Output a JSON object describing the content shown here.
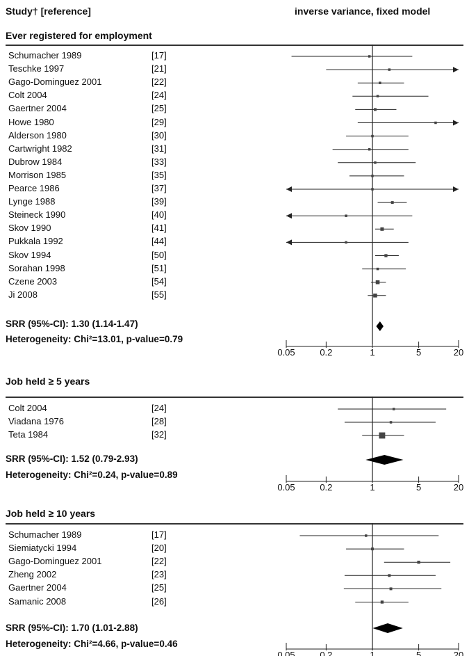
{
  "header": {
    "study_col": "Study† [reference]",
    "model_col": "inverse variance, fixed model"
  },
  "axis_ticks": [
    "0.05",
    "0.2",
    "1",
    "5",
    "20"
  ],
  "colors": {
    "line": "#222222",
    "box": "#444444",
    "diamond": "#000000"
  },
  "chart_data": {
    "type": "forest",
    "x_scale": "log",
    "xlim": [
      0.05,
      20
    ],
    "reference_line": 1,
    "sections": [
      {
        "title": "Ever registered for employment",
        "studies": [
          {
            "name": "Schumacher 1989",
            "ref": "[17]",
            "estimate": 0.9,
            "lo": 0.06,
            "hi": 4.0,
            "weight": 0.2
          },
          {
            "name": "Teschke 1997",
            "ref": "[21]",
            "estimate": 1.8,
            "lo": 0.2,
            "hi": 20,
            "weight": 0.2,
            "arrow_right": true
          },
          {
            "name": "Gago-Dominguez 2001",
            "ref": "[22]",
            "estimate": 1.3,
            "lo": 0.6,
            "hi": 3.0,
            "weight": 0.4
          },
          {
            "name": "Colt 2004",
            "ref": "[24]",
            "estimate": 1.2,
            "lo": 0.5,
            "hi": 7.0,
            "weight": 0.3
          },
          {
            "name": "Gaertner 2004",
            "ref": "[25]",
            "estimate": 1.1,
            "lo": 0.55,
            "hi": 2.3,
            "weight": 0.5
          },
          {
            "name": "Howe 1980",
            "ref": "[29]",
            "estimate": 9.0,
            "lo": 0.6,
            "hi": 20,
            "weight": 0.2,
            "arrow_right": true
          },
          {
            "name": "Alderson 1980",
            "ref": "[30]",
            "estimate": 1.0,
            "lo": 0.4,
            "hi": 3.5,
            "weight": 0.3
          },
          {
            "name": "Cartwright 1982",
            "ref": "[31]",
            "estimate": 0.9,
            "lo": 0.25,
            "hi": 3.5,
            "weight": 0.3
          },
          {
            "name": "Dubrow 1984",
            "ref": "[33]",
            "estimate": 1.1,
            "lo": 0.3,
            "hi": 4.5,
            "weight": 0.3
          },
          {
            "name": "Morrison 1985",
            "ref": "[35]",
            "estimate": 1.0,
            "lo": 0.45,
            "hi": 3.0,
            "weight": 0.3
          },
          {
            "name": "Pearce 1986",
            "ref": "[37]",
            "estimate": 1.0,
            "lo": 0.05,
            "hi": 20,
            "weight": 0.2,
            "arrow_left": true,
            "arrow_right": true
          },
          {
            "name": "Lynge 1988",
            "ref": "[39]",
            "estimate": 2.0,
            "lo": 1.2,
            "hi": 3.3,
            "weight": 0.5
          },
          {
            "name": "Steineck 1990",
            "ref": "[40]",
            "estimate": 0.4,
            "lo": 0.05,
            "hi": 4.0,
            "weight": 0.2,
            "arrow_left": true
          },
          {
            "name": "Skov 1990",
            "ref": "[41]",
            "estimate": 1.4,
            "lo": 1.1,
            "hi": 2.1,
            "weight": 0.8
          },
          {
            "name": "Pukkala 1992",
            "ref": "[44]",
            "estimate": 0.4,
            "lo": 0.05,
            "hi": 3.5,
            "weight": 0.2,
            "arrow_left": true
          },
          {
            "name": "Skov 1994",
            "ref": "[50]",
            "estimate": 1.6,
            "lo": 1.1,
            "hi": 2.5,
            "weight": 0.6
          },
          {
            "name": "Sorahan 1998",
            "ref": "[51]",
            "estimate": 1.2,
            "lo": 0.7,
            "hi": 3.2,
            "weight": 0.4
          },
          {
            "name": "Czene 2003",
            "ref": "[54]",
            "estimate": 1.2,
            "lo": 0.95,
            "hi": 1.6,
            "weight": 1.0
          },
          {
            "name": "Ji 2008",
            "ref": "[55]",
            "estimate": 1.1,
            "lo": 0.85,
            "hi": 1.6,
            "weight": 1.0
          }
        ],
        "summary": {
          "label": "SRR (95%-CI): 1.30 (1.14-1.47)",
          "estimate": 1.3,
          "lo": 1.14,
          "hi": 1.47
        },
        "heterogeneity": "Heterogeneity: Chi²=13.01, p-value=0.79"
      },
      {
        "title": "Job held ≥ 5 years",
        "studies": [
          {
            "name": "Colt 2004",
            "ref": "[24]",
            "estimate": 2.1,
            "lo": 0.3,
            "hi": 13.0,
            "weight": 0.35
          },
          {
            "name": "Viadana 1976",
            "ref": "[28]",
            "estimate": 1.9,
            "lo": 0.38,
            "hi": 9.0,
            "weight": 0.4
          },
          {
            "name": "Teta 1984",
            "ref": "[32]",
            "estimate": 1.4,
            "lo": 0.7,
            "hi": 3.0,
            "weight": 2.5
          }
        ],
        "summary": {
          "label": "SRR (95%-CI): 1.52 (0.79-2.93)",
          "estimate": 1.52,
          "lo": 0.79,
          "hi": 2.93
        },
        "heterogeneity": "Heterogeneity: Chi²=0.24, p-value=0.89"
      },
      {
        "title": "Job held ≥ 10 years",
        "studies": [
          {
            "name": "Schumacher 1989",
            "ref": "[17]",
            "estimate": 0.8,
            "lo": 0.08,
            "hi": 10.0,
            "weight": 0.2
          },
          {
            "name": "Siemiatycki 1994",
            "ref": "[20]",
            "estimate": 1.0,
            "lo": 0.4,
            "hi": 3.0,
            "weight": 0.5
          },
          {
            "name": "Gago-Dominguez 2001",
            "ref": "[22]",
            "estimate": 5.0,
            "lo": 1.5,
            "hi": 15.0,
            "weight": 0.6
          },
          {
            "name": "Zheng 2002",
            "ref": "[23]",
            "estimate": 1.8,
            "lo": 0.38,
            "hi": 9.0,
            "weight": 0.5
          },
          {
            "name": "Gaertner 2004",
            "ref": "[25]",
            "estimate": 1.9,
            "lo": 0.37,
            "hi": 11.0,
            "weight": 0.5
          },
          {
            "name": "Samanic 2008",
            "ref": "[26]",
            "estimate": 1.4,
            "lo": 0.55,
            "hi": 3.5,
            "weight": 0.6
          }
        ],
        "summary": {
          "label": "SRR (95%-CI): 1.70 (1.01-2.88)",
          "estimate": 1.7,
          "lo": 1.01,
          "hi": 2.88
        },
        "heterogeneity": "Heterogeneity: Chi²=4.66, p-value=0.46"
      }
    ]
  }
}
